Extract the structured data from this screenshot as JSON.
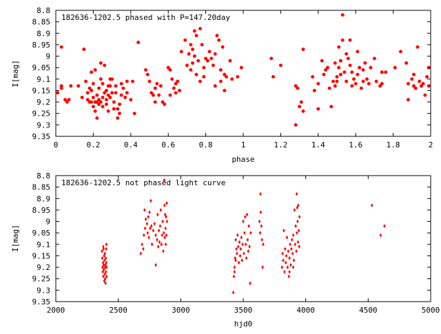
{
  "colors": {
    "points": "#ff0000",
    "frame": "#000000",
    "background": "#ffffff"
  },
  "chart_data": [
    {
      "type": "scatter",
      "title": "182636-1202.5 phased with P=147.20day",
      "xlabel": "phase",
      "ylabel": "I[mag]",
      "xlim": [
        0,
        2
      ],
      "ylim": [
        8.8,
        9.35
      ],
      "y_inverted": true,
      "grid": false,
      "legend": "none",
      "xticks": [
        "0",
        "0.2",
        "0.4",
        "0.6",
        "0.8",
        "1",
        "1.2",
        "1.4",
        "1.6",
        "1.8",
        "2"
      ],
      "yticks": [
        "8.8",
        "8.85",
        "8.9",
        "8.95",
        "9",
        "9.05",
        "9.1",
        "9.15",
        "9.2",
        "9.25",
        "9.3",
        "9.35"
      ],
      "points": [
        [
          0.01,
          9.16
        ],
        [
          0.03,
          9.13
        ],
        [
          0.03,
          9.14
        ],
        [
          0.03,
          8.96
        ],
        [
          0.05,
          9.19
        ],
        [
          0.06,
          9.2
        ],
        [
          0.07,
          9.19
        ],
        [
          0.08,
          9.13
        ],
        [
          0.12,
          9.13
        ],
        [
          0.14,
          9.18
        ],
        [
          0.15,
          8.97
        ],
        [
          0.16,
          9.11
        ],
        [
          0.17,
          9.19
        ],
        [
          0.17,
          9.16
        ],
        [
          0.18,
          9.2
        ],
        [
          0.18,
          9.14
        ],
        [
          0.19,
          9.07
        ],
        [
          0.19,
          9.15
        ],
        [
          0.19,
          9.2
        ],
        [
          0.2,
          9.22
        ],
        [
          0.2,
          9.12
        ],
        [
          0.2,
          9.18
        ],
        [
          0.21,
          9.06
        ],
        [
          0.21,
          9.2
        ],
        [
          0.21,
          9.24
        ],
        [
          0.22,
          9.27
        ],
        [
          0.22,
          9.2
        ],
        [
          0.22,
          9.17
        ],
        [
          0.23,
          9.21
        ],
        [
          0.23,
          9.19
        ],
        [
          0.23,
          9.14
        ],
        [
          0.24,
          9.1
        ],
        [
          0.24,
          9.03
        ],
        [
          0.24,
          9.2
        ],
        [
          0.25,
          9.18
        ],
        [
          0.25,
          9.22
        ],
        [
          0.25,
          9.12
        ],
        [
          0.26,
          9.04
        ],
        [
          0.26,
          9.16
        ],
        [
          0.27,
          9.21
        ],
        [
          0.27,
          9.19
        ],
        [
          0.27,
          9.15
        ],
        [
          0.28,
          9.13
        ],
        [
          0.28,
          9.17
        ],
        [
          0.28,
          9.24
        ],
        [
          0.29,
          9.1
        ],
        [
          0.29,
          9.18
        ],
        [
          0.29,
          9.13
        ],
        [
          0.3,
          9.1
        ],
        [
          0.3,
          9.16
        ],
        [
          0.31,
          9.23
        ],
        [
          0.31,
          9.2
        ],
        [
          0.32,
          9.16
        ],
        [
          0.32,
          9.13
        ],
        [
          0.33,
          9.27
        ],
        [
          0.33,
          9.23
        ],
        [
          0.34,
          9.21
        ],
        [
          0.34,
          9.25
        ],
        [
          0.35,
          9.17
        ],
        [
          0.35,
          9.12
        ],
        [
          0.36,
          9.14
        ],
        [
          0.37,
          9.18
        ],
        [
          0.38,
          9.11
        ],
        [
          0.38,
          9.16
        ],
        [
          0.4,
          9.19
        ],
        [
          0.41,
          9.11
        ],
        [
          0.42,
          9.25
        ],
        [
          0.44,
          8.94
        ],
        [
          0.48,
          9.06
        ],
        [
          0.49,
          9.08
        ],
        [
          0.5,
          9.11
        ],
        [
          0.51,
          9.16
        ],
        [
          0.52,
          9.17
        ],
        [
          0.53,
          9.14
        ],
        [
          0.53,
          9.2
        ],
        [
          0.54,
          9.12
        ],
        [
          0.55,
          9.17
        ],
        [
          0.56,
          9.13
        ],
        [
          0.57,
          9.2
        ],
        [
          0.58,
          9.21
        ],
        [
          0.6,
          9.05
        ],
        [
          0.61,
          9.06
        ],
        [
          0.61,
          9.17
        ],
        [
          0.62,
          9.1
        ],
        [
          0.63,
          9.14
        ],
        [
          0.64,
          9.16
        ],
        [
          0.64,
          9.12
        ],
        [
          0.65,
          9.11
        ],
        [
          0.66,
          9.15
        ],
        [
          0.67,
          8.98
        ],
        [
          0.69,
          8.93
        ],
        [
          0.7,
          9.04
        ],
        [
          0.71,
          8.99
        ],
        [
          0.72,
          8.95
        ],
        [
          0.72,
          9.06
        ],
        [
          0.73,
          8.97
        ],
        [
          0.73,
          9.03
        ],
        [
          0.74,
          8.89
        ],
        [
          0.74,
          9
        ],
        [
          0.75,
          8.91
        ],
        [
          0.75,
          9.08
        ],
        [
          0.76,
          9.02
        ],
        [
          0.77,
          8.88
        ],
        [
          0.77,
          9.11
        ],
        [
          0.78,
          8.95
        ],
        [
          0.79,
          9.05
        ],
        [
          0.79,
          9.09
        ],
        [
          0.8,
          9.01
        ],
        [
          0.81,
          9.02
        ],
        [
          0.82,
          8.98
        ],
        [
          0.83,
          9.01
        ],
        [
          0.84,
          9.04
        ],
        [
          0.85,
          8.99
        ],
        [
          0.85,
          9.13
        ],
        [
          0.86,
          8.91
        ],
        [
          0.87,
          8.93
        ],
        [
          0.88,
          9.06
        ],
        [
          0.88,
          9.11
        ],
        [
          0.89,
          8.96
        ],
        [
          0.9,
          9.08
        ],
        [
          0.91,
          9.09
        ],
        [
          0.9,
          9.15
        ],
        [
          0.93,
          9.02
        ],
        [
          0.94,
          9.1
        ],
        [
          0.97,
          9.09
        ],
        [
          0.99,
          9.05
        ],
        [
          1.15,
          9.01
        ],
        [
          1.16,
          9.09
        ],
        [
          1.2,
          9.04
        ],
        [
          1.28,
          9.3
        ],
        [
          1.28,
          9.13
        ],
        [
          1.29,
          9.14
        ],
        [
          1.3,
          9.22
        ],
        [
          1.31,
          9.2
        ],
        [
          1.32,
          9.24
        ],
        [
          1.32,
          8.97
        ],
        [
          1.37,
          9.09
        ],
        [
          1.38,
          9.15
        ],
        [
          1.4,
          9.23
        ],
        [
          1.4,
          9.12
        ],
        [
          1.42,
          9.02
        ],
        [
          1.43,
          9.08
        ],
        [
          1.44,
          9.06
        ],
        [
          1.45,
          9.05
        ],
        [
          1.46,
          9.14
        ],
        [
          1.47,
          9.22
        ],
        [
          1.48,
          9.11
        ],
        [
          1.49,
          9.13
        ],
        [
          1.49,
          9.03
        ],
        [
          1.5,
          9.09
        ],
        [
          1.5,
          9.11
        ],
        [
          1.51,
          9.05
        ],
        [
          1.51,
          8.96
        ],
        [
          1.52,
          9.08
        ],
        [
          1.52,
          9.02
        ],
        [
          1.53,
          8.82
        ],
        [
          1.53,
          8.93
        ],
        [
          1.54,
          9.07
        ],
        [
          1.55,
          8.99
        ],
        [
          1.55,
          9.11
        ],
        [
          1.56,
          9.01
        ],
        [
          1.57,
          9.04
        ],
        [
          1.57,
          8.93
        ],
        [
          1.58,
          9.13
        ],
        [
          1.58,
          9.07
        ],
        [
          1.59,
          9.1
        ],
        [
          1.6,
          9.12
        ],
        [
          1.61,
          8.98
        ],
        [
          1.61,
          9.08
        ],
        [
          1.62,
          9.05
        ],
        [
          1.63,
          9.14
        ],
        [
          1.64,
          9.11
        ],
        [
          1.64,
          9.06
        ],
        [
          1.65,
          9.03
        ],
        [
          1.66,
          9.1
        ],
        [
          1.67,
          9.12
        ],
        [
          1.68,
          9.05
        ],
        [
          1.7,
          9.01
        ],
        [
          1.71,
          9.11
        ],
        [
          1.73,
          9.13
        ],
        [
          1.74,
          9.12
        ],
        [
          1.74,
          9.07
        ],
        [
          1.76,
          9.07
        ],
        [
          1.81,
          9.05
        ],
        [
          1.84,
          8.98
        ],
        [
          1.87,
          9.03
        ],
        [
          1.88,
          9.12
        ],
        [
          1.88,
          9.19
        ],
        [
          1.9,
          9.1
        ],
        [
          1.91,
          9.13
        ],
        [
          1.91,
          9.08
        ],
        [
          1.92,
          9.14
        ],
        [
          1.93,
          8.96
        ],
        [
          1.94,
          9.11
        ],
        [
          1.95,
          9.13
        ],
        [
          1.96,
          9.12
        ],
        [
          1.97,
          9.17
        ],
        [
          1.98,
          9.09
        ],
        [
          1.99,
          9.05
        ],
        [
          1.99,
          9.13
        ]
      ]
    },
    {
      "type": "scatter",
      "title": "182636-1202.5 not phased light curve",
      "xlabel": "hjd0",
      "ylabel": "I[mag]",
      "xlim": [
        2000,
        5000
      ],
      "ylim": [
        8.8,
        9.35
      ],
      "y_inverted": true,
      "grid": false,
      "legend": "none",
      "xticks": [
        "2000",
        "2500",
        "3000",
        "3500",
        "4000",
        "4500",
        "5000"
      ],
      "yticks": [
        "8.8",
        "8.85",
        "8.9",
        "8.95",
        "9",
        "9.05",
        "9.1",
        "9.15",
        "9.2",
        "9.25",
        "9.3",
        "9.35"
      ],
      "points": [
        [
          2370,
          9.13
        ],
        [
          2372,
          9.16
        ],
        [
          2374,
          9.2
        ],
        [
          2376,
          9.22
        ],
        [
          2378,
          9.18
        ],
        [
          2380,
          9.24
        ],
        [
          2382,
          9.12
        ],
        [
          2383,
          9.19
        ],
        [
          2385,
          9.21
        ],
        [
          2387,
          9.15
        ],
        [
          2388,
          9.26
        ],
        [
          2390,
          9.17
        ],
        [
          2392,
          9.23
        ],
        [
          2393,
          9.14
        ],
        [
          2395,
          9.2
        ],
        [
          2397,
          9.19
        ],
        [
          2398,
          9.27
        ],
        [
          2400,
          9.16
        ],
        [
          2401,
          9.22
        ],
        [
          2403,
          9.12
        ],
        [
          2404,
          9.18
        ],
        [
          2405,
          9.1
        ],
        [
          2406,
          9.2
        ],
        [
          2407,
          9.24
        ],
        [
          2380,
          9.11
        ],
        [
          2395,
          9.25
        ],
        [
          2680,
          9.14
        ],
        [
          2690,
          9.1
        ],
        [
          2700,
          9.12
        ],
        [
          2705,
          9.06
        ],
        [
          2710,
          8.95
        ],
        [
          2715,
          9.03
        ],
        [
          2720,
          8.99
        ],
        [
          2730,
          9.01
        ],
        [
          2735,
          9.05
        ],
        [
          2740,
          8.98
        ],
        [
          2745,
          9.07
        ],
        [
          2750,
          8.96
        ],
        [
          2755,
          9.03
        ],
        [
          2760,
          8.91
        ],
        [
          2765,
          9.02
        ],
        [
          2770,
          9.1
        ],
        [
          2780,
          9.04
        ],
        [
          2790,
          9.01
        ],
        [
          2800,
          9.06
        ],
        [
          2810,
          9.08
        ],
        [
          2815,
          8.97
        ],
        [
          2820,
          9.11
        ],
        [
          2825,
          9.04
        ],
        [
          2830,
          9.09
        ],
        [
          2835,
          9.02
        ],
        [
          2840,
          8.95
        ],
        [
          2845,
          9.1
        ],
        [
          2850,
          9.06
        ],
        [
          2855,
          9.0
        ],
        [
          2860,
          9.13
        ],
        [
          2865,
          9.05
        ],
        [
          2868,
          8.82
        ],
        [
          2870,
          8.93
        ],
        [
          2872,
          9.07
        ],
        [
          2875,
          8.97
        ],
        [
          2878,
          9.03
        ],
        [
          2880,
          9.1
        ],
        [
          2882,
          8.98
        ],
        [
          2885,
          9.06
        ],
        [
          2888,
          8.92
        ],
        [
          2890,
          9.0
        ],
        [
          2800,
          9.19
        ],
        [
          3420,
          9.31
        ],
        [
          3425,
          9.24
        ],
        [
          3430,
          9.2
        ],
        [
          3435,
          9.16
        ],
        [
          3440,
          9.08
        ],
        [
          3445,
          9.12
        ],
        [
          3450,
          9.14
        ],
        [
          3455,
          9.06
        ],
        [
          3460,
          9.11
        ],
        [
          3465,
          9.18
        ],
        [
          3470,
          9.09
        ],
        [
          3475,
          9.15
        ],
        [
          3480,
          9.12
        ],
        [
          3485,
          9.07
        ],
        [
          3490,
          9.17
        ],
        [
          3495,
          9.1
        ],
        [
          3500,
          9.0
        ],
        [
          3505,
          9.14
        ],
        [
          3510,
          9.05
        ],
        [
          3515,
          8.98
        ],
        [
          3520,
          9.1
        ],
        [
          3525,
          9.16
        ],
        [
          3530,
          8.97
        ],
        [
          3535,
          9.08
        ],
        [
          3540,
          9.13
        ],
        [
          3545,
          9.02
        ],
        [
          3550,
          9.11
        ],
        [
          3555,
          9.27
        ],
        [
          3560,
          9.05
        ],
        [
          3430,
          9.22
        ],
        [
          3440,
          9.17
        ],
        [
          3630,
          9.0
        ],
        [
          3635,
          9.05
        ],
        [
          3638,
          8.88
        ],
        [
          3640,
          8.96
        ],
        [
          3645,
          9.02
        ],
        [
          3650,
          9.08
        ],
        [
          3655,
          9.2
        ],
        [
          3660,
          9.1
        ],
        [
          3810,
          9.2
        ],
        [
          3815,
          9.14
        ],
        [
          3820,
          9.17
        ],
        [
          3825,
          9.04
        ],
        [
          3830,
          9.22
        ],
        [
          3835,
          9.12
        ],
        [
          3840,
          9.18
        ],
        [
          3845,
          9.15
        ],
        [
          3850,
          9.07
        ],
        [
          3855,
          9.2
        ],
        [
          3860,
          9.13
        ],
        [
          3865,
          9.24
        ],
        [
          3870,
          9.16
        ],
        [
          3875,
          9.1
        ],
        [
          3880,
          9.19
        ],
        [
          3885,
          9.12
        ],
        [
          3890,
          9.08
        ],
        [
          3895,
          9.14
        ],
        [
          3900,
          9.06
        ],
        [
          3905,
          9.17
        ],
        [
          3910,
          8.95
        ],
        [
          3915,
          9.1
        ],
        [
          3920,
          9.02
        ],
        [
          3925,
          9.13
        ],
        [
          3928,
          8.88
        ],
        [
          3930,
          9.05
        ],
        [
          3932,
          8.94
        ],
        [
          3935,
          9.0
        ],
        [
          3938,
          9.09
        ],
        [
          3940,
          8.93
        ],
        [
          3945,
          9.04
        ],
        [
          3948,
          9.11
        ],
        [
          3950,
          8.98
        ],
        [
          3870,
          9.22
        ],
        [
          3900,
          9.2
        ],
        [
          4530,
          8.93
        ],
        [
          4600,
          9.06
        ],
        [
          4630,
          9.02
        ]
      ]
    }
  ]
}
